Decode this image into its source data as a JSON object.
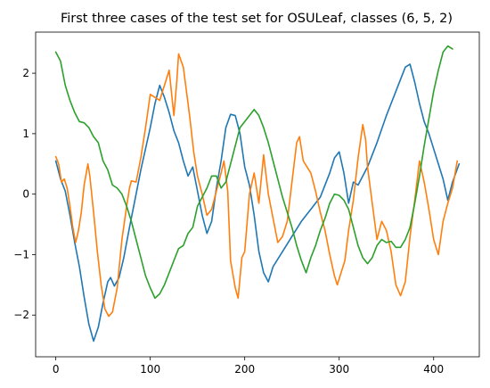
{
  "chart_data": {
    "type": "line",
    "title": "First three cases of the test set for OSULeaf, classes (6, 5, 2)",
    "xlabel": "",
    "ylabel": "",
    "xlim": [
      -21.35,
      448.35
    ],
    "ylim": [
      -2.69,
      2.68
    ],
    "xticks": [
      0,
      100,
      200,
      300,
      400
    ],
    "yticks": [
      -2,
      -1,
      0,
      1,
      2
    ],
    "grid": false,
    "legend": "none",
    "series": [
      {
        "color": "#1f77b4",
        "points": [
          [
            0,
            0.55
          ],
          [
            5,
            0.25
          ],
          [
            10,
            0.05
          ],
          [
            15,
            -0.35
          ],
          [
            20,
            -0.8
          ],
          [
            25,
            -1.2
          ],
          [
            30,
            -1.7
          ],
          [
            35,
            -2.15
          ],
          [
            40,
            -2.43
          ],
          [
            45,
            -2.2
          ],
          [
            50,
            -1.8
          ],
          [
            55,
            -1.45
          ],
          [
            58,
            -1.38
          ],
          [
            62,
            -1.52
          ],
          [
            67,
            -1.38
          ],
          [
            72,
            -1.05
          ],
          [
            78,
            -0.55
          ],
          [
            85,
            0.0
          ],
          [
            90,
            0.4
          ],
          [
            95,
            0.75
          ],
          [
            100,
            1.1
          ],
          [
            105,
            1.5
          ],
          [
            110,
            1.8
          ],
          [
            115,
            1.6
          ],
          [
            120,
            1.35
          ],
          [
            125,
            1.05
          ],
          [
            130,
            0.85
          ],
          [
            135,
            0.55
          ],
          [
            140,
            0.3
          ],
          [
            145,
            0.45
          ],
          [
            150,
            0.05
          ],
          [
            155,
            -0.35
          ],
          [
            160,
            -0.65
          ],
          [
            165,
            -0.45
          ],
          [
            170,
            0.1
          ],
          [
            175,
            0.55
          ],
          [
            180,
            1.1
          ],
          [
            185,
            1.32
          ],
          [
            190,
            1.3
          ],
          [
            195,
            1.0
          ],
          [
            200,
            0.45
          ],
          [
            205,
            0.15
          ],
          [
            210,
            -0.35
          ],
          [
            215,
            -0.95
          ],
          [
            220,
            -1.3
          ],
          [
            225,
            -1.45
          ],
          [
            230,
            -1.2
          ],
          [
            240,
            -0.95
          ],
          [
            250,
            -0.7
          ],
          [
            260,
            -0.45
          ],
          [
            270,
            -0.25
          ],
          [
            280,
            -0.05
          ],
          [
            290,
            0.35
          ],
          [
            295,
            0.6
          ],
          [
            300,
            0.7
          ],
          [
            305,
            0.35
          ],
          [
            310,
            -0.15
          ],
          [
            315,
            0.2
          ],
          [
            320,
            0.15
          ],
          [
            330,
            0.45
          ],
          [
            340,
            0.85
          ],
          [
            350,
            1.3
          ],
          [
            360,
            1.7
          ],
          [
            370,
            2.1
          ],
          [
            375,
            2.15
          ],
          [
            380,
            1.85
          ],
          [
            385,
            1.5
          ],
          [
            390,
            1.2
          ],
          [
            395,
            1.0
          ],
          [
            400,
            0.75
          ],
          [
            405,
            0.5
          ],
          [
            410,
            0.25
          ],
          [
            415,
            -0.1
          ],
          [
            420,
            0.2
          ],
          [
            427,
            0.5
          ]
        ]
      },
      {
        "color": "#ff7f0e",
        "points": [
          [
            0,
            0.62
          ],
          [
            3,
            0.5
          ],
          [
            6,
            0.2
          ],
          [
            9,
            0.25
          ],
          [
            12,
            0.1
          ],
          [
            15,
            -0.2
          ],
          [
            18,
            -0.55
          ],
          [
            21,
            -0.8
          ],
          [
            24,
            -0.6
          ],
          [
            27,
            -0.3
          ],
          [
            30,
            0.15
          ],
          [
            34,
            0.5
          ],
          [
            36,
            0.3
          ],
          [
            40,
            -0.3
          ],
          [
            44,
            -0.95
          ],
          [
            48,
            -1.5
          ],
          [
            52,
            -1.9
          ],
          [
            56,
            -2.02
          ],
          [
            60,
            -1.95
          ],
          [
            65,
            -1.55
          ],
          [
            70,
            -0.75
          ],
          [
            75,
            -0.2
          ],
          [
            78,
            0.1
          ],
          [
            80,
            0.22
          ],
          [
            85,
            0.2
          ],
          [
            90,
            0.6
          ],
          [
            95,
            1.1
          ],
          [
            100,
            1.65
          ],
          [
            105,
            1.6
          ],
          [
            110,
            1.55
          ],
          [
            115,
            1.8
          ],
          [
            120,
            2.05
          ],
          [
            125,
            1.3
          ],
          [
            128,
            1.85
          ],
          [
            130,
            2.32
          ],
          [
            135,
            2.1
          ],
          [
            140,
            1.5
          ],
          [
            142,
            1.25
          ],
          [
            146,
            0.7
          ],
          [
            150,
            0.3
          ],
          [
            155,
            0.0
          ],
          [
            160,
            -0.35
          ],
          [
            165,
            -0.25
          ],
          [
            170,
            0.05
          ],
          [
            175,
            0.35
          ],
          [
            178,
            0.55
          ],
          [
            182,
            0.05
          ],
          [
            185,
            -1.1
          ],
          [
            190,
            -1.55
          ],
          [
            193,
            -1.72
          ],
          [
            197,
            -1.05
          ],
          [
            200,
            -0.95
          ],
          [
            205,
            0.0
          ],
          [
            210,
            0.35
          ],
          [
            215,
            -0.15
          ],
          [
            220,
            0.65
          ],
          [
            225,
            0.0
          ],
          [
            230,
            -0.4
          ],
          [
            235,
            -0.8
          ],
          [
            240,
            -0.7
          ],
          [
            245,
            -0.45
          ],
          [
            250,
            0.2
          ],
          [
            255,
            0.85
          ],
          [
            258,
            0.95
          ],
          [
            262,
            0.55
          ],
          [
            266,
            0.45
          ],
          [
            270,
            0.35
          ],
          [
            275,
            0.05
          ],
          [
            280,
            -0.3
          ],
          [
            285,
            -0.6
          ],
          [
            290,
            -1.0
          ],
          [
            295,
            -1.35
          ],
          [
            298,
            -1.5
          ],
          [
            302,
            -1.3
          ],
          [
            306,
            -1.1
          ],
          [
            310,
            -0.6
          ],
          [
            315,
            -0.1
          ],
          [
            320,
            0.6
          ],
          [
            325,
            1.15
          ],
          [
            328,
            0.9
          ],
          [
            330,
            0.45
          ],
          [
            335,
            -0.15
          ],
          [
            340,
            -0.75
          ],
          [
            345,
            -0.45
          ],
          [
            350,
            -0.6
          ],
          [
            355,
            -0.95
          ],
          [
            360,
            -1.5
          ],
          [
            365,
            -1.68
          ],
          [
            370,
            -1.45
          ],
          [
            375,
            -0.7
          ],
          [
            380,
            -0.1
          ],
          [
            385,
            0.55
          ],
          [
            390,
            0.2
          ],
          [
            395,
            -0.25
          ],
          [
            400,
            -0.75
          ],
          [
            405,
            -1.0
          ],
          [
            410,
            -0.45
          ],
          [
            415,
            -0.15
          ],
          [
            420,
            0.1
          ],
          [
            425,
            0.55
          ]
        ]
      },
      {
        "color": "#2ca02c",
        "points": [
          [
            0,
            2.35
          ],
          [
            5,
            2.2
          ],
          [
            10,
            1.8
          ],
          [
            15,
            1.55
          ],
          [
            20,
            1.35
          ],
          [
            25,
            1.2
          ],
          [
            30,
            1.18
          ],
          [
            35,
            1.1
          ],
          [
            40,
            0.95
          ],
          [
            45,
            0.85
          ],
          [
            50,
            0.55
          ],
          [
            55,
            0.4
          ],
          [
            60,
            0.15
          ],
          [
            65,
            0.1
          ],
          [
            70,
            0.0
          ],
          [
            75,
            -0.2
          ],
          [
            80,
            -0.45
          ],
          [
            85,
            -0.75
          ],
          [
            90,
            -1.05
          ],
          [
            95,
            -1.35
          ],
          [
            100,
            -1.55
          ],
          [
            105,
            -1.72
          ],
          [
            110,
            -1.65
          ],
          [
            115,
            -1.5
          ],
          [
            120,
            -1.3
          ],
          [
            125,
            -1.1
          ],
          [
            130,
            -0.9
          ],
          [
            135,
            -0.85
          ],
          [
            140,
            -0.65
          ],
          [
            145,
            -0.55
          ],
          [
            150,
            -0.2
          ],
          [
            155,
            -0.05
          ],
          [
            160,
            0.1
          ],
          [
            165,
            0.3
          ],
          [
            170,
            0.3
          ],
          [
            175,
            0.1
          ],
          [
            180,
            0.2
          ],
          [
            185,
            0.5
          ],
          [
            190,
            0.8
          ],
          [
            195,
            1.1
          ],
          [
            200,
            1.2
          ],
          [
            205,
            1.3
          ],
          [
            210,
            1.4
          ],
          [
            215,
            1.3
          ],
          [
            220,
            1.1
          ],
          [
            225,
            0.85
          ],
          [
            230,
            0.55
          ],
          [
            235,
            0.25
          ],
          [
            240,
            -0.05
          ],
          [
            245,
            -0.3
          ],
          [
            250,
            -0.55
          ],
          [
            255,
            -0.85
          ],
          [
            260,
            -1.1
          ],
          [
            265,
            -1.3
          ],
          [
            270,
            -1.05
          ],
          [
            275,
            -0.85
          ],
          [
            280,
            -0.6
          ],
          [
            285,
            -0.4
          ],
          [
            290,
            -0.15
          ],
          [
            295,
            0.0
          ],
          [
            300,
            -0.02
          ],
          [
            305,
            -0.1
          ],
          [
            310,
            -0.25
          ],
          [
            315,
            -0.55
          ],
          [
            320,
            -0.85
          ],
          [
            325,
            -1.05
          ],
          [
            330,
            -1.15
          ],
          [
            335,
            -1.05
          ],
          [
            340,
            -0.85
          ],
          [
            345,
            -0.75
          ],
          [
            350,
            -0.8
          ],
          [
            355,
            -0.78
          ],
          [
            360,
            -0.88
          ],
          [
            365,
            -0.88
          ],
          [
            370,
            -0.75
          ],
          [
            375,
            -0.55
          ],
          [
            380,
            -0.15
          ],
          [
            385,
            0.3
          ],
          [
            390,
            0.8
          ],
          [
            395,
            1.25
          ],
          [
            400,
            1.7
          ],
          [
            405,
            2.05
          ],
          [
            410,
            2.35
          ],
          [
            415,
            2.45
          ],
          [
            420,
            2.4
          ]
        ]
      }
    ]
  }
}
